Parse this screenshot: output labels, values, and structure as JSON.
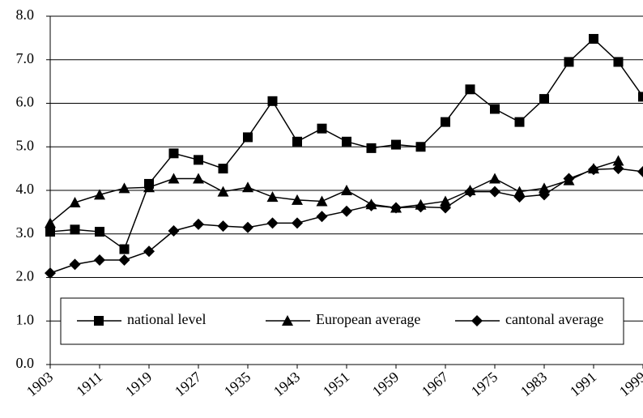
{
  "chart_data": {
    "type": "line",
    "x": [
      1903,
      1907,
      1911,
      1915,
      1919,
      1923,
      1927,
      1931,
      1935,
      1939,
      1943,
      1947,
      1951,
      1955,
      1959,
      1963,
      1967,
      1971,
      1975,
      1979,
      1983,
      1987,
      1991,
      1995,
      1999
    ],
    "xlim": [
      1903,
      1999
    ],
    "xticks": [
      1903,
      1911,
      1919,
      1927,
      1935,
      1943,
      1951,
      1959,
      1967,
      1975,
      1983,
      1991,
      1999
    ],
    "ylim": [
      0,
      8
    ],
    "yticks": [
      {
        "value": 0,
        "label": "0.0"
      },
      {
        "value": 1,
        "label": "1.0"
      },
      {
        "value": 2,
        "label": "2.0"
      },
      {
        "value": 3,
        "label": "3.0"
      },
      {
        "value": 4,
        "label": "4.0"
      },
      {
        "value": 5,
        "label": "5.0"
      },
      {
        "value": 6,
        "label": "6.0"
      },
      {
        "value": 7,
        "label": "7.0"
      },
      {
        "value": 8,
        "label": "8.0"
      }
    ],
    "grid": true,
    "series": [
      {
        "name": "national level",
        "color": "#000000",
        "marker": "square",
        "values": [
          3.05,
          3.1,
          3.05,
          2.65,
          4.15,
          4.85,
          4.7,
          4.5,
          5.22,
          6.05,
          5.12,
          5.42,
          5.12,
          4.97,
          5.05,
          5.0,
          5.57,
          6.32,
          5.87,
          5.57,
          6.1,
          6.95,
          7.48,
          6.95,
          6.15
        ]
      },
      {
        "name": "European average",
        "color": "#000000",
        "marker": "triangle",
        "values": [
          3.25,
          3.72,
          3.9,
          4.05,
          4.07,
          4.27,
          4.27,
          3.97,
          4.07,
          3.85,
          3.78,
          3.75,
          4.0,
          3.68,
          3.6,
          3.67,
          3.75,
          4.0,
          4.27,
          3.97,
          4.05,
          4.23,
          4.5,
          4.68,
          null
        ]
      },
      {
        "name": "cantonal average",
        "color": "#000000",
        "marker": "diamond",
        "values": [
          2.1,
          2.3,
          2.4,
          2.4,
          2.6,
          3.07,
          3.22,
          3.18,
          3.15,
          3.25,
          3.25,
          3.4,
          3.52,
          3.65,
          3.6,
          3.62,
          3.6,
          3.97,
          3.97,
          3.85,
          3.9,
          4.27,
          4.48,
          4.5,
          4.43
        ]
      }
    ]
  }
}
